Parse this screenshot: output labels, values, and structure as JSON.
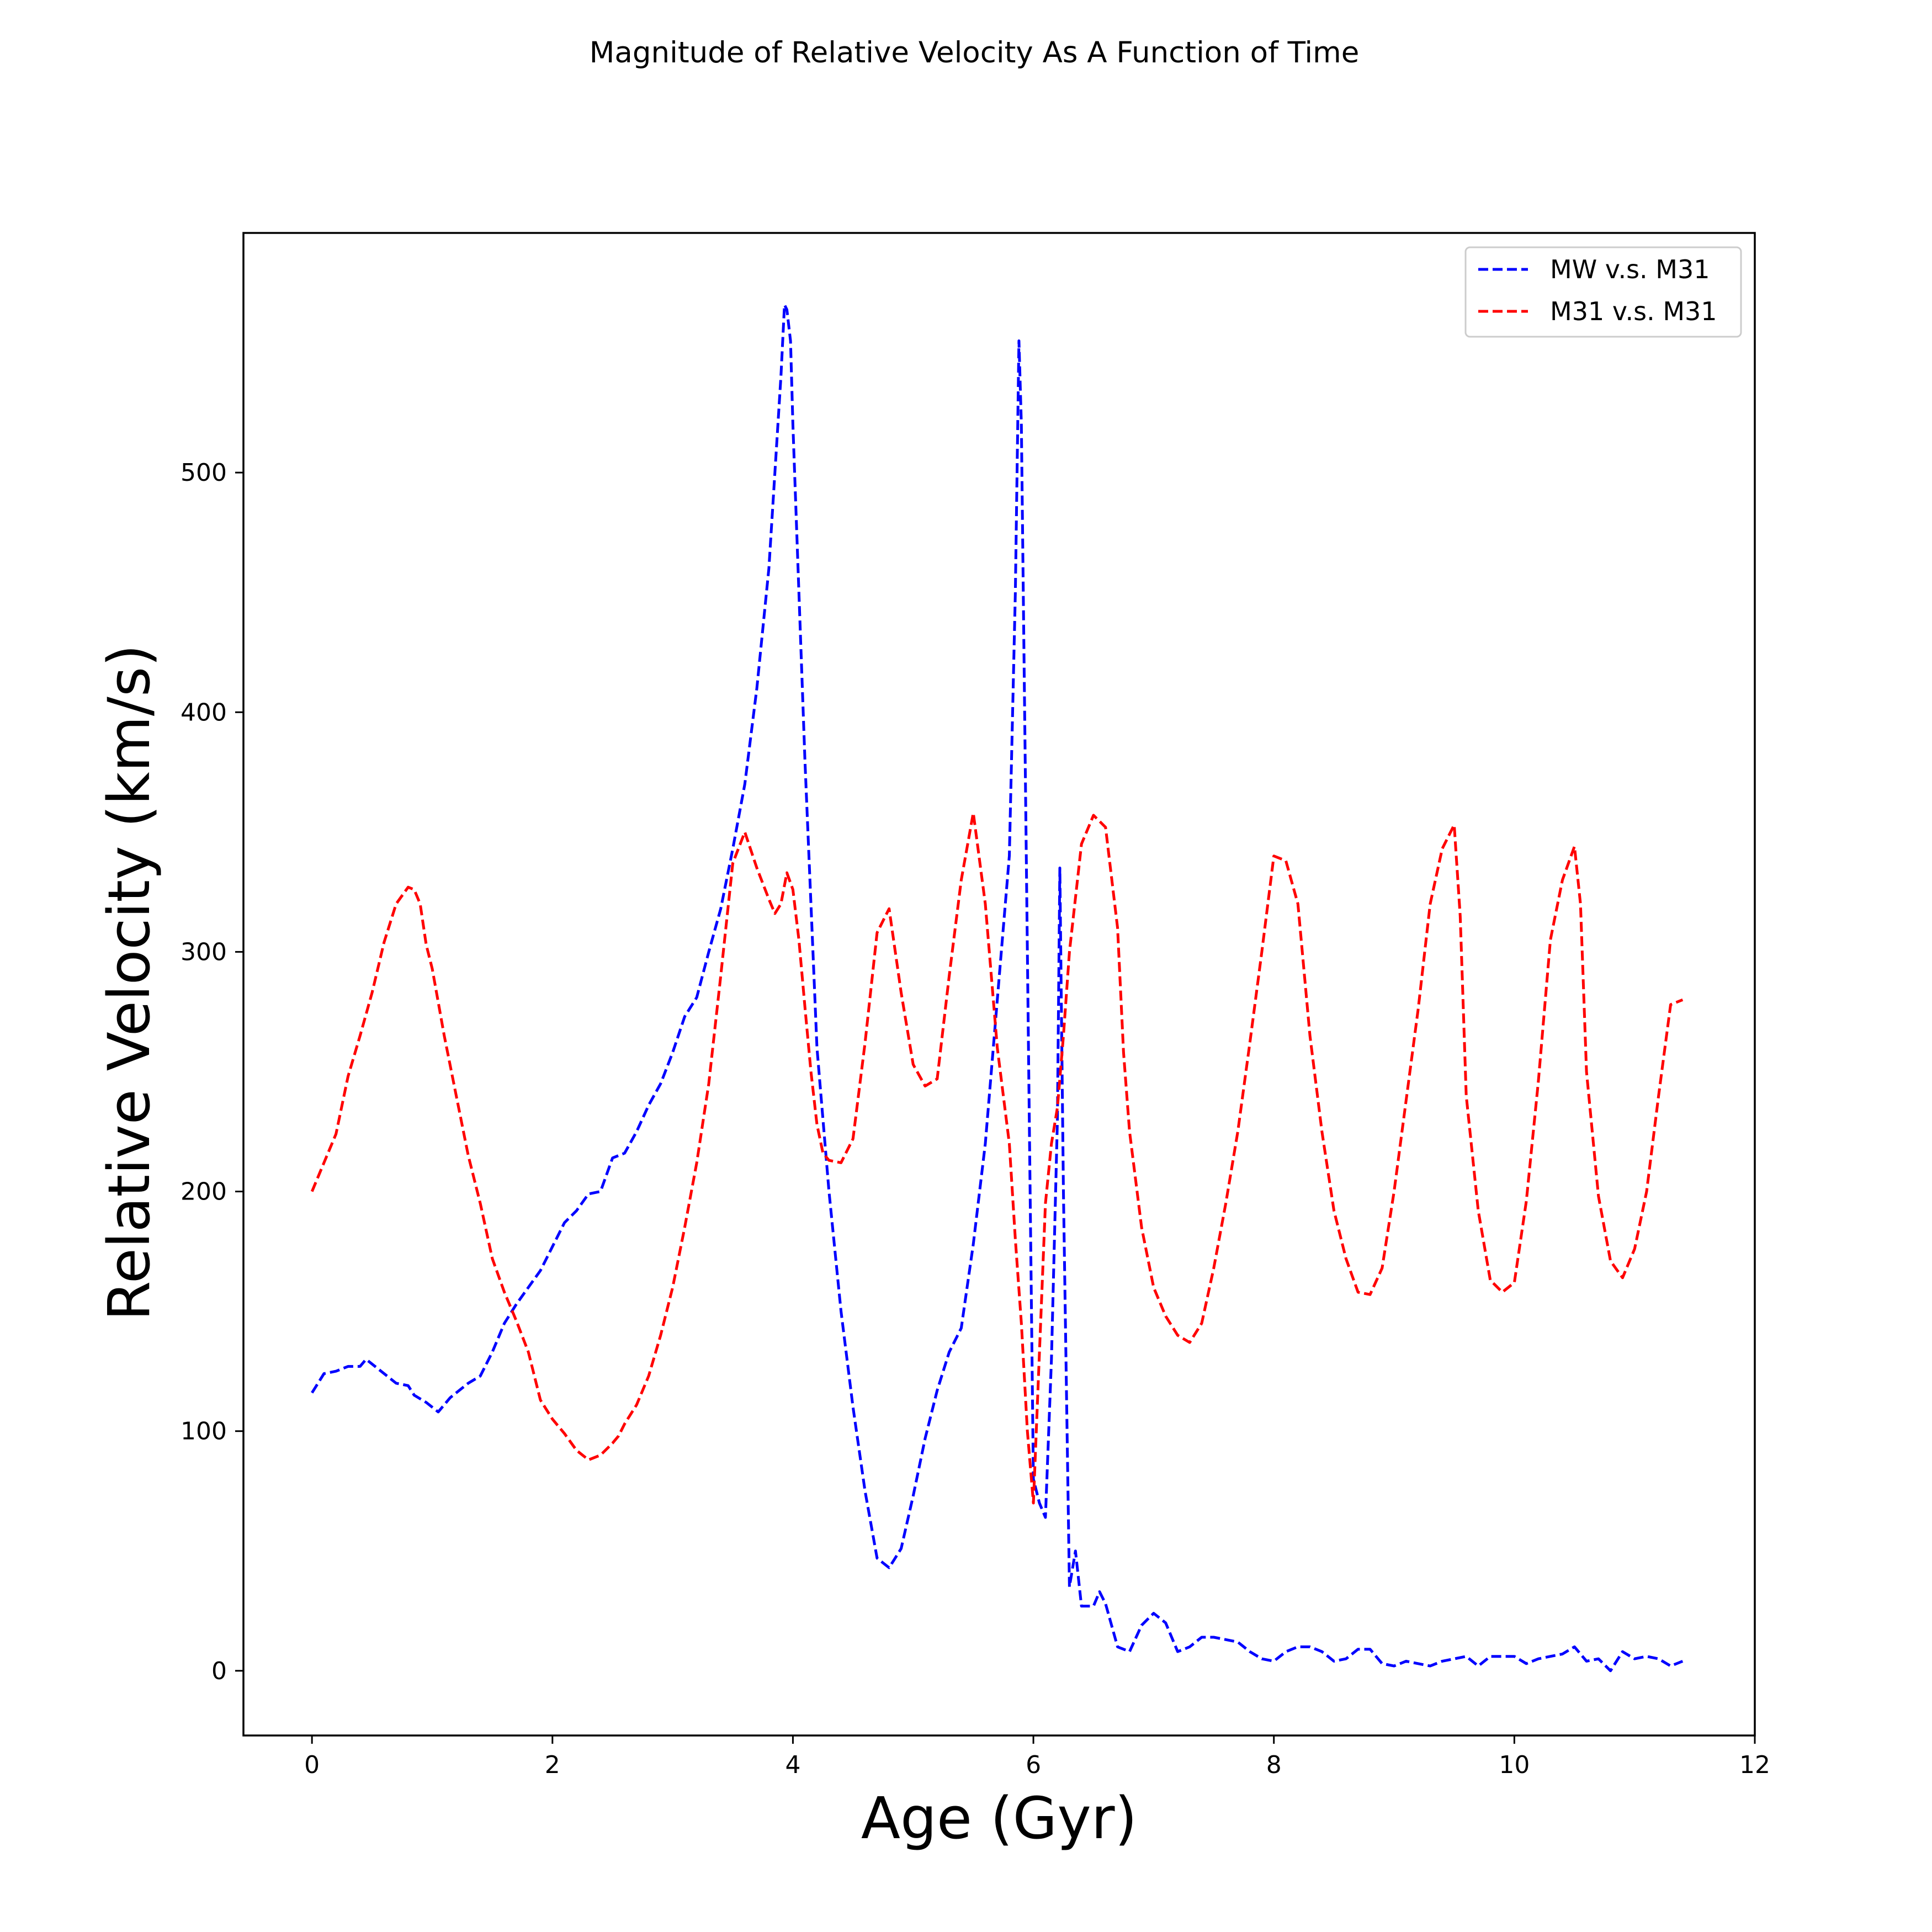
{
  "chart_data": {
    "type": "line",
    "title": "Magnitude of Relative Velocity As A Function of Time",
    "xlabel": "Age (Gyr)",
    "ylabel": "Relative Velocity (km/s)",
    "xlim": [
      -0.57,
      12.0
    ],
    "ylim": [
      -27,
      600
    ],
    "xticks": [
      0,
      2,
      4,
      6,
      8,
      10,
      12
    ],
    "yticks": [
      0,
      100,
      200,
      300,
      400,
      500
    ],
    "grid": false,
    "legend_position": "top-right",
    "line_style": "dashed",
    "series": [
      {
        "name": "MW v.s. M31",
        "color": "#0000ff",
        "x": [
          0.0,
          0.1,
          0.2,
          0.3,
          0.4,
          0.45,
          0.55,
          0.7,
          0.8,
          0.85,
          0.95,
          1.05,
          1.15,
          1.3,
          1.4,
          1.5,
          1.6,
          1.7,
          1.8,
          1.9,
          2.0,
          2.1,
          2.2,
          2.3,
          2.4,
          2.5,
          2.6,
          2.7,
          2.8,
          2.9,
          3.0,
          3.1,
          3.2,
          3.3,
          3.4,
          3.5,
          3.6,
          3.7,
          3.8,
          3.85,
          3.9,
          3.93,
          3.95,
          3.98,
          4.0,
          4.05,
          4.1,
          4.15,
          4.2,
          4.3,
          4.4,
          4.5,
          4.6,
          4.7,
          4.8,
          4.9,
          5.0,
          5.1,
          5.2,
          5.3,
          5.4,
          5.5,
          5.6,
          5.7,
          5.8,
          5.85,
          5.88,
          5.9,
          5.95,
          6.0,
          6.05,
          6.1,
          6.15,
          6.2,
          6.22,
          6.25,
          6.3,
          6.35,
          6.4,
          6.5,
          6.55,
          6.6,
          6.7,
          6.8,
          6.9,
          7.0,
          7.1,
          7.2,
          7.3,
          7.4,
          7.5,
          7.6,
          7.7,
          7.8,
          7.9,
          8.0,
          8.1,
          8.2,
          8.3,
          8.4,
          8.5,
          8.6,
          8.7,
          8.8,
          8.9,
          9.0,
          9.1,
          9.2,
          9.3,
          9.4,
          9.5,
          9.6,
          9.7,
          9.8,
          9.9,
          10.0,
          10.1,
          10.2,
          10.3,
          10.4,
          10.5,
          10.6,
          10.7,
          10.8,
          10.9,
          11.0,
          11.1,
          11.2,
          11.3,
          11.4
        ],
        "values": [
          116,
          124,
          125,
          127,
          127,
          130,
          126,
          120,
          119,
          115,
          112,
          108,
          114,
          120,
          123,
          133,
          145,
          153,
          160,
          167,
          177,
          187,
          192,
          199,
          200,
          214,
          216,
          225,
          236,
          245,
          258,
          273,
          281,
          300,
          318,
          343,
          370,
          410,
          460,
          500,
          540,
          570,
          568,
          555,
          520,
          450,
          380,
          320,
          260,
          200,
          150,
          110,
          75,
          47,
          43,
          51,
          73,
          97,
          117,
          133,
          143,
          178,
          220,
          280,
          340,
          450,
          555,
          520,
          300,
          80,
          70,
          64,
          130,
          230,
          335,
          200,
          35,
          50,
          27,
          27,
          33,
          28,
          10,
          8,
          19,
          24,
          20,
          8,
          10,
          14,
          14,
          13,
          12,
          8,
          5,
          4,
          8,
          10,
          10,
          8,
          4,
          5,
          9,
          9,
          3,
          2,
          4,
          3,
          2,
          4,
          5,
          6,
          2,
          6,
          6,
          6,
          3,
          5,
          6,
          7,
          10,
          4,
          5,
          0,
          8,
          5,
          6,
          5,
          2,
          4
        ]
      },
      {
        "name": "M31 v.s. M31",
        "color": "#ff0000",
        "x": [
          0.0,
          0.1,
          0.2,
          0.3,
          0.4,
          0.5,
          0.6,
          0.7,
          0.8,
          0.85,
          0.9,
          0.95,
          1.0,
          1.1,
          1.2,
          1.3,
          1.4,
          1.5,
          1.6,
          1.7,
          1.8,
          1.9,
          2.0,
          2.1,
          2.2,
          2.3,
          2.4,
          2.5,
          2.55,
          2.6,
          2.7,
          2.8,
          2.9,
          3.0,
          3.1,
          3.2,
          3.3,
          3.4,
          3.5,
          3.6,
          3.7,
          3.8,
          3.85,
          3.9,
          3.95,
          4.0,
          4.05,
          4.1,
          4.15,
          4.2,
          4.25,
          4.3,
          4.4,
          4.5,
          4.6,
          4.7,
          4.8,
          4.9,
          5.0,
          5.1,
          5.2,
          5.3,
          5.4,
          5.5,
          5.6,
          5.7,
          5.8,
          5.85,
          5.9,
          5.95,
          6.0,
          6.1,
          6.15,
          6.2,
          6.25,
          6.3,
          6.4,
          6.5,
          6.6,
          6.7,
          6.75,
          6.8,
          6.9,
          7.0,
          7.1,
          7.2,
          7.3,
          7.4,
          7.5,
          7.6,
          7.7,
          7.8,
          7.9,
          8.0,
          8.1,
          8.2,
          8.3,
          8.4,
          8.5,
          8.6,
          8.7,
          8.8,
          8.9,
          9.0,
          9.1,
          9.2,
          9.3,
          9.4,
          9.5,
          9.55,
          9.6,
          9.7,
          9.8,
          9.9,
          10.0,
          10.1,
          10.2,
          10.3,
          10.4,
          10.5,
          10.55,
          10.6,
          10.7,
          10.8,
          10.9,
          11.0,
          11.1,
          11.2,
          11.3,
          11.4
        ],
        "values": [
          200,
          212,
          224,
          248,
          265,
          283,
          304,
          320,
          327,
          326,
          320,
          303,
          293,
          265,
          240,
          215,
          195,
          172,
          158,
          146,
          133,
          113,
          105,
          99,
          92,
          88,
          90,
          95,
          98,
          103,
          111,
          123,
          140,
          160,
          185,
          212,
          245,
          290,
          337,
          350,
          335,
          322,
          316,
          320,
          333,
          326,
          305,
          277,
          250,
          228,
          216,
          213,
          212,
          222,
          262,
          308,
          318,
          283,
          253,
          244,
          247,
          290,
          330,
          358,
          320,
          260,
          220,
          180,
          145,
          100,
          70,
          195,
          220,
          235,
          265,
          300,
          345,
          357,
          352,
          310,
          258,
          225,
          185,
          160,
          148,
          140,
          137,
          145,
          168,
          195,
          225,
          262,
          300,
          340,
          338,
          320,
          265,
          225,
          192,
          172,
          158,
          157,
          168,
          200,
          238,
          276,
          320,
          343,
          353,
          315,
          240,
          192,
          163,
          158,
          162,
          196,
          246,
          305,
          330,
          344,
          320,
          250,
          198,
          171,
          164,
          176,
          200,
          240,
          278,
          280
        ]
      }
    ]
  }
}
